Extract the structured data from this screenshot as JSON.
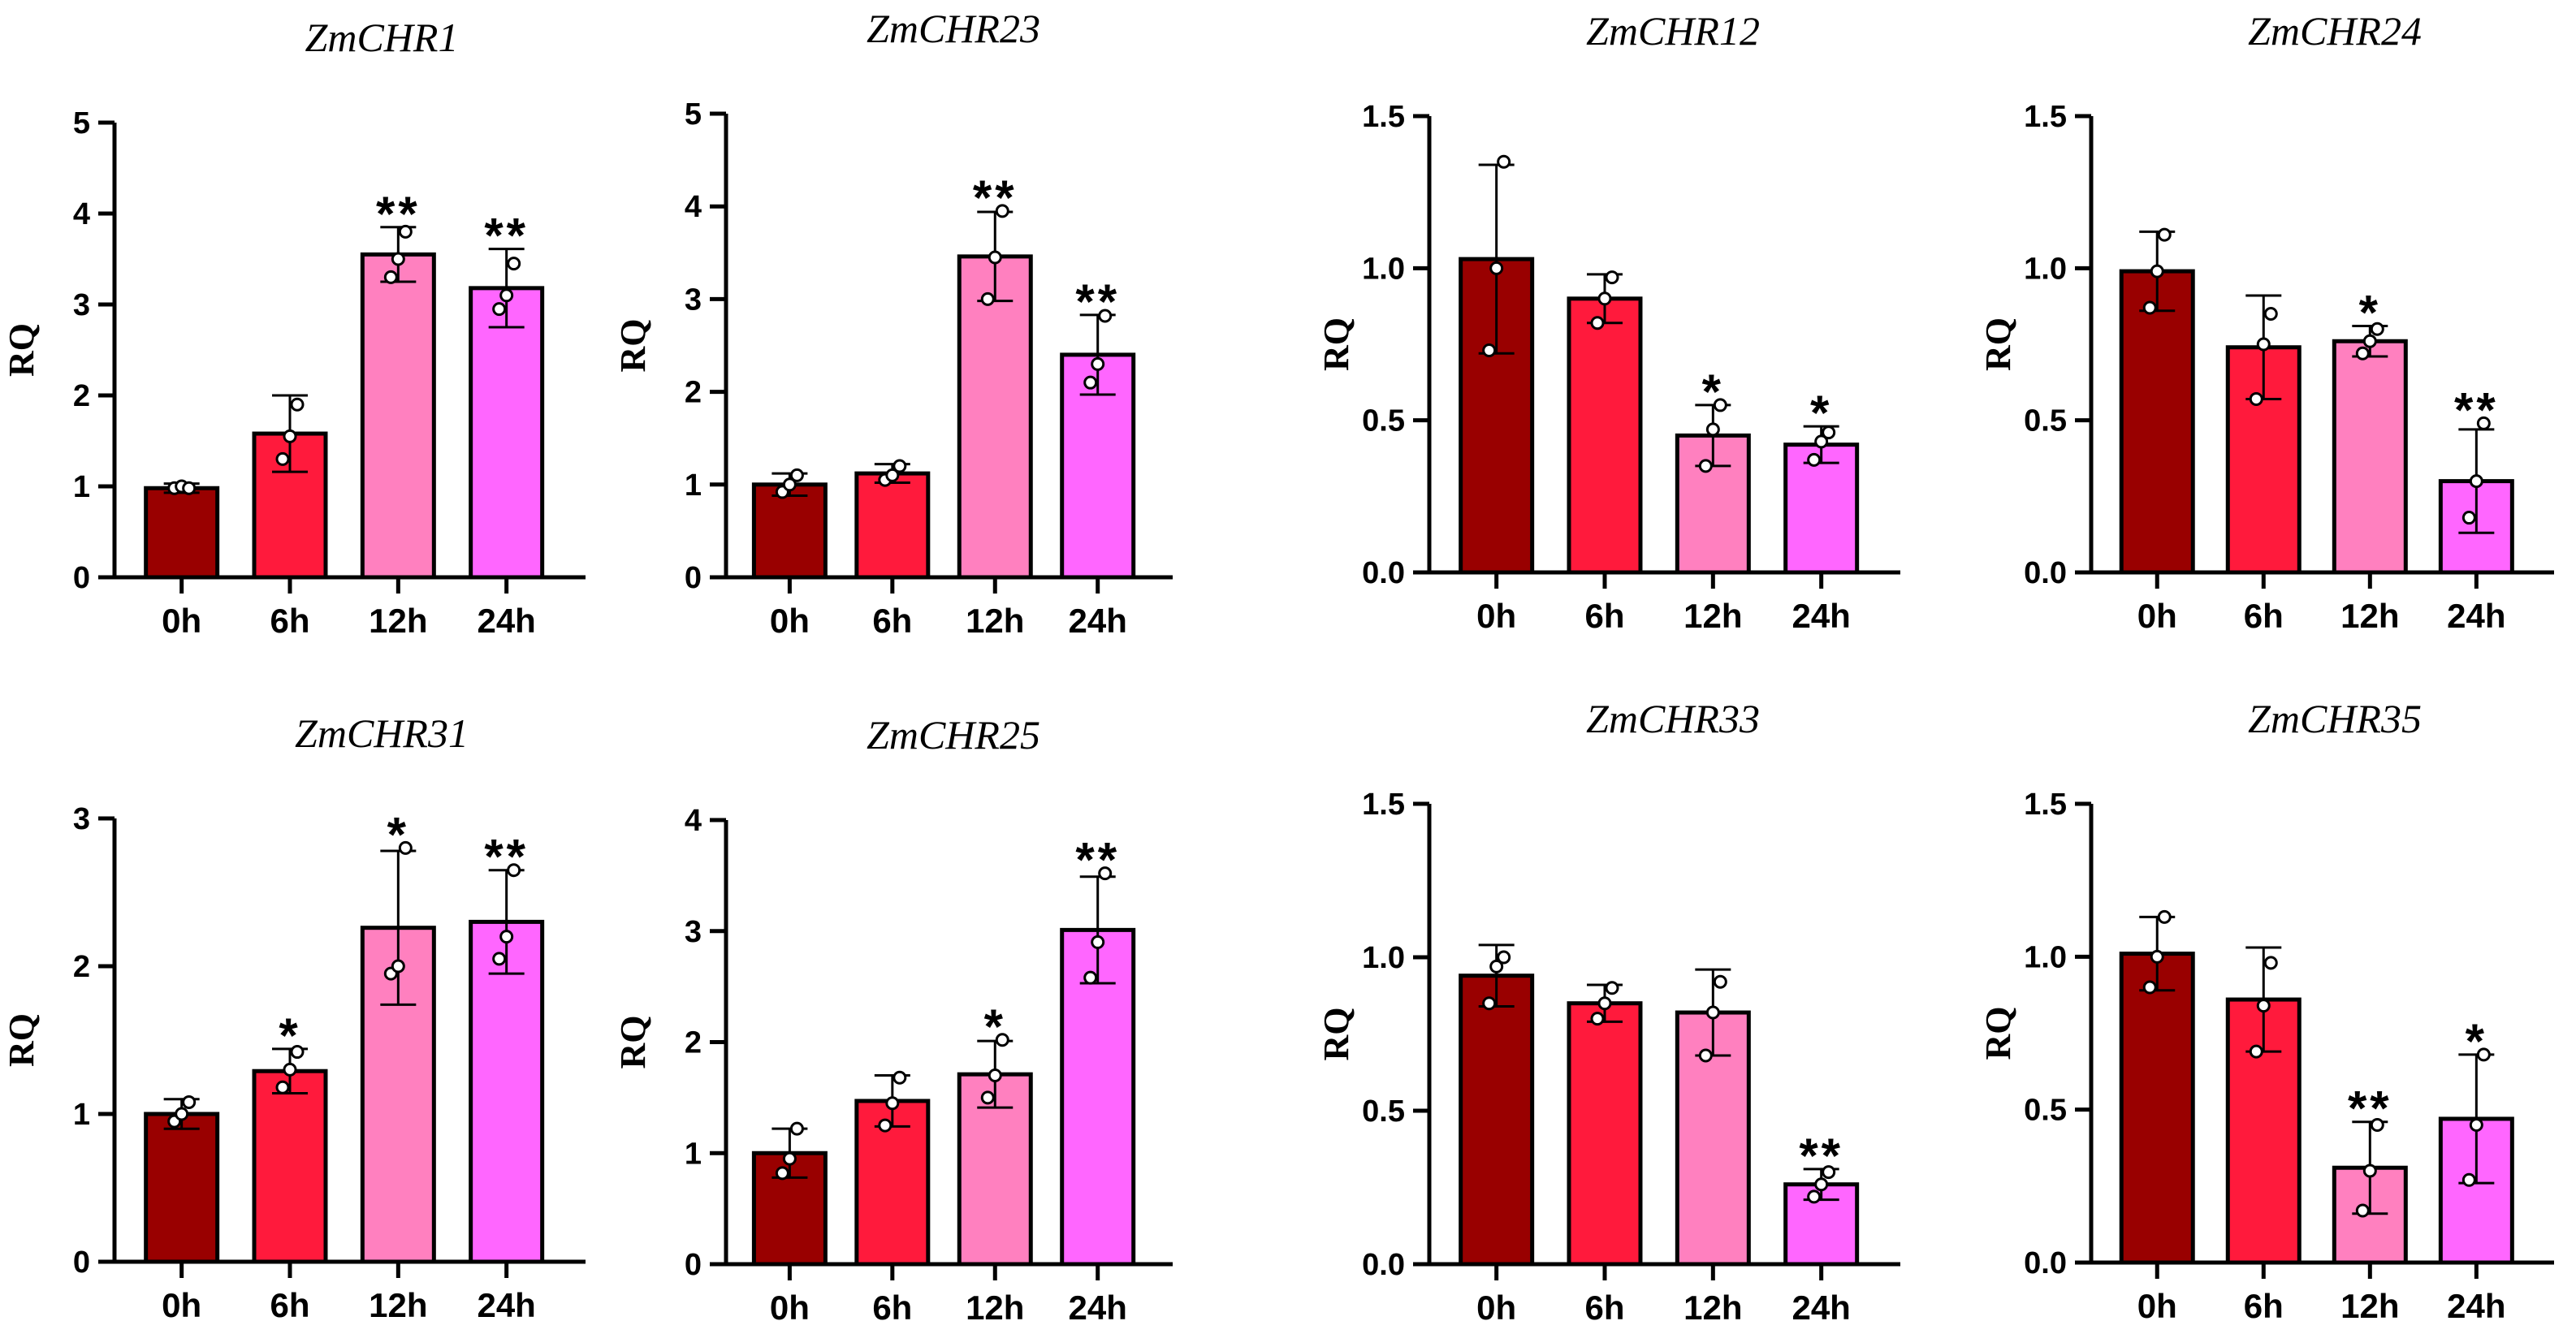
{
  "chart_data": [
    {
      "type": "bar",
      "title": "ZmCHR1",
      "ylabel": "RQ",
      "xlabel": "",
      "ylim": [
        0,
        5
      ],
      "yticks": [
        "0",
        "1",
        "2",
        "3",
        "4",
        "5"
      ],
      "categories": [
        "0h",
        "6h",
        "12h",
        "24h"
      ],
      "values": [
        0.98,
        1.58,
        3.55,
        3.18
      ],
      "errors": [
        0.05,
        0.42,
        0.3,
        0.43
      ],
      "points": [
        [
          0.98,
          1.0,
          0.98
        ],
        [
          1.3,
          1.55,
          1.9
        ],
        [
          3.3,
          3.5,
          3.8
        ],
        [
          2.95,
          3.1,
          3.45
        ]
      ],
      "significance": [
        "",
        "",
        "**",
        "**"
      ],
      "colors": [
        "#990000",
        "#ff1a3c",
        "#ff80bf",
        "#ff66ff"
      ]
    },
    {
      "type": "bar",
      "title": "ZmCHR23",
      "ylabel": "RQ",
      "xlabel": "",
      "ylim": [
        0,
        5
      ],
      "yticks": [
        "0",
        "1",
        "2",
        "3",
        "4",
        "5"
      ],
      "categories": [
        "0h",
        "6h",
        "12h",
        "24h"
      ],
      "values": [
        1.0,
        1.12,
        3.46,
        2.4
      ],
      "errors": [
        0.12,
        0.1,
        0.48,
        0.43
      ],
      "points": [
        [
          0.92,
          1.0,
          1.1
        ],
        [
          1.05,
          1.1,
          1.2
        ],
        [
          3.0,
          3.45,
          3.95
        ],
        [
          2.1,
          2.3,
          2.82
        ]
      ],
      "significance": [
        "",
        "",
        "**",
        "**"
      ],
      "colors": [
        "#990000",
        "#ff1a3c",
        "#ff80bf",
        "#ff66ff"
      ]
    },
    {
      "type": "bar",
      "title": "ZmCHR12",
      "ylabel": "RQ",
      "xlabel": "",
      "ylim": [
        0,
        1.5
      ],
      "yticks": [
        "0.0",
        "0.5",
        "1.0",
        "1.5"
      ],
      "categories": [
        "0h",
        "6h",
        "12h",
        "24h"
      ],
      "values": [
        1.03,
        0.9,
        0.45,
        0.42
      ],
      "errors": [
        0.31,
        0.08,
        0.1,
        0.06
      ],
      "points": [
        [
          0.73,
          1.0,
          1.35
        ],
        [
          0.82,
          0.9,
          0.97
        ],
        [
          0.35,
          0.47,
          0.55
        ],
        [
          0.37,
          0.43,
          0.46
        ]
      ],
      "significance": [
        "",
        "",
        "*",
        "*"
      ],
      "colors": [
        "#990000",
        "#ff1a3c",
        "#ff80bf",
        "#ff66ff"
      ]
    },
    {
      "type": "bar",
      "title": "ZmCHR24",
      "ylabel": "RQ",
      "xlabel": "",
      "ylim": [
        0,
        1.5
      ],
      "yticks": [
        "0.0",
        "0.5",
        "1.0",
        "1.5"
      ],
      "categories": [
        "0h",
        "6h",
        "12h",
        "24h"
      ],
      "values": [
        0.99,
        0.74,
        0.76,
        0.3
      ],
      "errors": [
        0.13,
        0.17,
        0.05,
        0.17
      ],
      "points": [
        [
          0.87,
          0.99,
          1.11
        ],
        [
          0.57,
          0.75,
          0.85
        ],
        [
          0.72,
          0.76,
          0.8
        ],
        [
          0.18,
          0.3,
          0.49
        ]
      ],
      "significance": [
        "",
        "",
        "*",
        "**"
      ],
      "colors": [
        "#990000",
        "#ff1a3c",
        "#ff80bf",
        "#ff66ff"
      ]
    },
    {
      "type": "bar",
      "title": "ZmCHR31",
      "ylabel": "RQ",
      "xlabel": "",
      "ylim": [
        0,
        3
      ],
      "yticks": [
        "0",
        "1",
        "2",
        "3"
      ],
      "categories": [
        "0h",
        "6h",
        "12h",
        "24h"
      ],
      "values": [
        1.0,
        1.29,
        2.26,
        2.3
      ],
      "errors": [
        0.1,
        0.15,
        0.52,
        0.35
      ],
      "points": [
        [
          0.95,
          1.0,
          1.08
        ],
        [
          1.18,
          1.3,
          1.42
        ],
        [
          1.95,
          2.0,
          2.8
        ],
        [
          2.05,
          2.2,
          2.65
        ]
      ],
      "significance": [
        "",
        "*",
        "*",
        "**"
      ],
      "colors": [
        "#990000",
        "#ff1a3c",
        "#ff80bf",
        "#ff66ff"
      ]
    },
    {
      "type": "bar",
      "title": "ZmCHR25",
      "ylabel": "RQ",
      "xlabel": "",
      "ylim": [
        0,
        4
      ],
      "yticks": [
        "0",
        "1",
        "2",
        "3",
        "4"
      ],
      "categories": [
        "0h",
        "6h",
        "12h",
        "24h"
      ],
      "values": [
        1.0,
        1.47,
        1.71,
        3.01
      ],
      "errors": [
        0.22,
        0.23,
        0.3,
        0.48
      ],
      "points": [
        [
          0.82,
          0.95,
          1.22
        ],
        [
          1.25,
          1.45,
          1.68
        ],
        [
          1.5,
          1.7,
          2.02
        ],
        [
          2.58,
          2.9,
          3.52
        ]
      ],
      "significance": [
        "",
        "",
        "*",
        "**"
      ],
      "colors": [
        "#990000",
        "#ff1a3c",
        "#ff80bf",
        "#ff66ff"
      ]
    },
    {
      "type": "bar",
      "title": "ZmCHR33",
      "ylabel": "RQ",
      "xlabel": "",
      "ylim": [
        0,
        1.5
      ],
      "yticks": [
        "0.0",
        "0.5",
        "1.0",
        "1.5"
      ],
      "categories": [
        "0h",
        "6h",
        "12h",
        "24h"
      ],
      "values": [
        0.94,
        0.85,
        0.82,
        0.26
      ],
      "errors": [
        0.1,
        0.06,
        0.14,
        0.05
      ],
      "points": [
        [
          0.85,
          0.97,
          1.0
        ],
        [
          0.8,
          0.85,
          0.9
        ],
        [
          0.68,
          0.82,
          0.92
        ],
        [
          0.22,
          0.26,
          0.3
        ]
      ],
      "significance": [
        "",
        "",
        "",
        "**"
      ],
      "colors": [
        "#990000",
        "#ff1a3c",
        "#ff80bf",
        "#ff66ff"
      ]
    },
    {
      "type": "bar",
      "title": "ZmCHR35",
      "ylabel": "RQ",
      "xlabel": "",
      "ylim": [
        0,
        1.5
      ],
      "yticks": [
        "0.0",
        "0.5",
        "1.0",
        "1.5"
      ],
      "categories": [
        "0h",
        "6h",
        "12h",
        "24h"
      ],
      "values": [
        1.01,
        0.86,
        0.31,
        0.47
      ],
      "errors": [
        0.12,
        0.17,
        0.15,
        0.21
      ],
      "points": [
        [
          0.9,
          1.0,
          1.13
        ],
        [
          0.69,
          0.84,
          0.98
        ],
        [
          0.17,
          0.3,
          0.45
        ],
        [
          0.27,
          0.45,
          0.68
        ]
      ],
      "significance": [
        "",
        "",
        "**",
        "*"
      ],
      "colors": [
        "#990000",
        "#ff1a3c",
        "#ff80bf",
        "#ff66ff"
      ]
    }
  ]
}
